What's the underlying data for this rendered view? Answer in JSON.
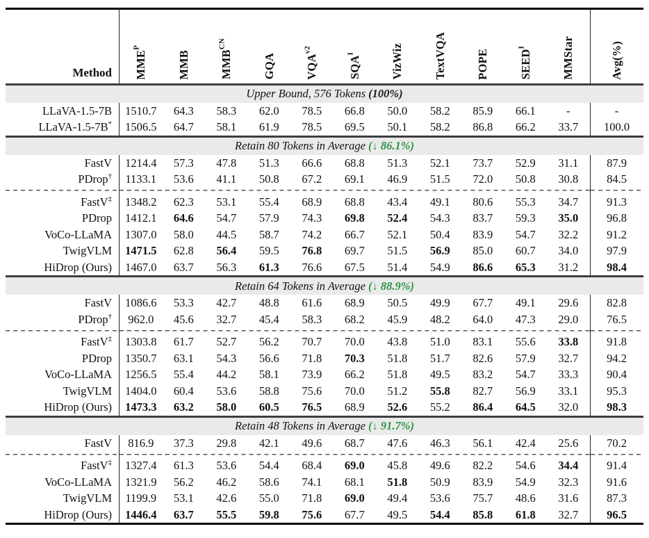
{
  "colors": {
    "green": "#2e9447",
    "black": "#1a1a1a",
    "band_bg": "#eaeaea"
  },
  "table": {
    "method_header": "Method",
    "columns": [
      {
        "label": "MME",
        "sup": "P"
      },
      {
        "label": "MMB",
        "sup": ""
      },
      {
        "label": "MMB",
        "sup": "CN"
      },
      {
        "label": "GQA",
        "sup": ""
      },
      {
        "label": "VQA",
        "sup": "v2"
      },
      {
        "label": "SQA",
        "sup": "I"
      },
      {
        "label": "VizWiz",
        "sup": ""
      },
      {
        "label": "TextVQA",
        "sup": ""
      },
      {
        "label": "POPE",
        "sup": ""
      },
      {
        "label": "SEED",
        "sup": "I"
      },
      {
        "label": "MMStar",
        "sup": ""
      },
      {
        "label": "Avg(%)",
        "sup": ""
      }
    ],
    "sections": [
      {
        "title": "Upper Bound, 576 Tokens",
        "badge": "(100%)",
        "badge_color": "black",
        "groups": [
          [
            {
              "method": "LLaVA-1.5-7B",
              "sup": "",
              "cells": [
                "1510.7",
                "64.3",
                "58.3",
                "62.0",
                "78.5",
                "66.8",
                "50.0",
                "58.2",
                "85.9",
                "66.1",
                "-",
                "-"
              ],
              "bold": []
            },
            {
              "method": "LLaVA-1.5-7B",
              "sup": "*",
              "cells": [
                "1506.5",
                "64.7",
                "58.1",
                "61.9",
                "78.5",
                "69.5",
                "50.1",
                "58.2",
                "86.8",
                "66.2",
                "33.7",
                "100.0"
              ],
              "bold": []
            }
          ]
        ]
      },
      {
        "title": "Retain 80 Tokens in Average",
        "badge": "(↓ 86.1%)",
        "badge_color": "green",
        "groups": [
          [
            {
              "method": "FastV",
              "sup": "",
              "cells": [
                "1214.4",
                "57.3",
                "47.8",
                "51.3",
                "66.6",
                "68.8",
                "51.3",
                "52.1",
                "73.7",
                "52.9",
                "31.1",
                "87.9"
              ],
              "bold": []
            },
            {
              "method": "PDrop",
              "sup": "†",
              "cells": [
                "1133.1",
                "53.6",
                "41.1",
                "50.8",
                "67.2",
                "69.1",
                "46.9",
                "51.5",
                "72.0",
                "50.8",
                "30.8",
                "84.5"
              ],
              "bold": []
            }
          ],
          [
            {
              "method": "FastV",
              "sup": "‡",
              "cells": [
                "1348.2",
                "62.3",
                "53.1",
                "55.4",
                "68.9",
                "68.8",
                "43.4",
                "49.1",
                "80.6",
                "55.3",
                "34.7",
                "91.3"
              ],
              "bold": []
            },
            {
              "method": "PDrop",
              "sup": "",
              "cells": [
                "1412.1",
                "64.6",
                "54.7",
                "57.9",
                "74.3",
                "69.8",
                "52.4",
                "54.3",
                "83.7",
                "59.3",
                "35.0",
                "96.8"
              ],
              "bold": [
                1,
                5,
                6,
                10
              ]
            },
            {
              "method": "VoCo-LLaMA",
              "sup": "",
              "cells": [
                "1307.0",
                "58.0",
                "44.5",
                "58.7",
                "74.2",
                "66.7",
                "52.1",
                "50.4",
                "83.9",
                "54.7",
                "32.2",
                "91.2"
              ],
              "bold": []
            },
            {
              "method": "TwigVLM",
              "sup": "",
              "cells": [
                "1471.5",
                "62.8",
                "56.4",
                "59.5",
                "76.8",
                "69.7",
                "51.5",
                "56.9",
                "85.0",
                "60.7",
                "34.0",
                "97.9"
              ],
              "bold": [
                0,
                2,
                4,
                7
              ]
            },
            {
              "method": "HiDrop (Ours)",
              "sup": "",
              "cells": [
                "1467.0",
                "63.7",
                "56.3",
                "61.3",
                "76.6",
                "67.5",
                "51.4",
                "54.9",
                "86.6",
                "65.3",
                "31.2",
                "98.4"
              ],
              "bold": [
                3,
                8,
                9,
                11
              ]
            }
          ]
        ]
      },
      {
        "title": "Retain 64 Tokens in Average",
        "badge": "(↓ 88.9%)",
        "badge_color": "green",
        "groups": [
          [
            {
              "method": "FastV",
              "sup": "",
              "cells": [
                "1086.6",
                "53.3",
                "42.7",
                "48.8",
                "61.6",
                "68.9",
                "50.5",
                "49.9",
                "67.7",
                "49.1",
                "29.6",
                "82.8"
              ],
              "bold": []
            },
            {
              "method": "PDrop",
              "sup": "†",
              "cells": [
                "962.0",
                "45.6",
                "32.7",
                "45.4",
                "58.3",
                "68.2",
                "45.9",
                "48.2",
                "64.0",
                "47.3",
                "29.0",
                "76.5"
              ],
              "bold": []
            }
          ],
          [
            {
              "method": "FastV",
              "sup": "‡",
              "cells": [
                "1303.8",
                "61.7",
                "52.7",
                "56.2",
                "70.7",
                "70.0",
                "43.8",
                "51.0",
                "83.1",
                "55.6",
                "33.8",
                "91.8"
              ],
              "bold": [
                10
              ]
            },
            {
              "method": "PDrop",
              "sup": "",
              "cells": [
                "1350.7",
                "63.1",
                "54.3",
                "56.6",
                "71.8",
                "70.3",
                "51.8",
                "51.7",
                "82.6",
                "57.9",
                "32.7",
                "94.2"
              ],
              "bold": [
                5
              ]
            },
            {
              "method": "VoCo-LLaMA",
              "sup": "",
              "cells": [
                "1256.5",
                "55.4",
                "44.2",
                "58.1",
                "73.9",
                "66.2",
                "51.8",
                "49.5",
                "83.2",
                "54.7",
                "33.3",
                "90.4"
              ],
              "bold": []
            },
            {
              "method": "TwigVLM",
              "sup": "",
              "cells": [
                "1404.0",
                "60.4",
                "53.6",
                "58.8",
                "75.6",
                "70.0",
                "51.2",
                "55.8",
                "82.7",
                "56.9",
                "33.1",
                "95.3"
              ],
              "bold": [
                7
              ]
            },
            {
              "method": "HiDrop (Ours)",
              "sup": "",
              "cells": [
                "1473.3",
                "63.2",
                "58.0",
                "60.5",
                "76.5",
                "68.9",
                "52.6",
                "55.2",
                "86.4",
                "64.5",
                "32.0",
                "98.3"
              ],
              "bold": [
                0,
                1,
                2,
                3,
                4,
                6,
                8,
                9,
                11
              ]
            }
          ]
        ]
      },
      {
        "title": "Retain 48 Tokens in Average",
        "badge": "(↓ 91.7%)",
        "badge_color": "green",
        "groups": [
          [
            {
              "method": "FastV",
              "sup": "",
              "cells": [
                "816.9",
                "37.3",
                "29.8",
                "42.1",
                "49.6",
                "68.7",
                "47.6",
                "46.3",
                "56.1",
                "42.4",
                "25.6",
                "70.2"
              ],
              "bold": []
            }
          ],
          [
            {
              "method": "FastV",
              "sup": "‡",
              "cells": [
                "1327.4",
                "61.3",
                "53.6",
                "54.4",
                "68.4",
                "69.0",
                "45.8",
                "49.6",
                "82.2",
                "54.6",
                "34.4",
                "91.4"
              ],
              "bold": [
                5,
                10
              ]
            },
            {
              "method": "VoCo-LLaMA",
              "sup": "",
              "cells": [
                "1321.9",
                "56.2",
                "46.2",
                "58.6",
                "74.1",
                "68.1",
                "51.8",
                "50.9",
                "83.9",
                "54.9",
                "32.3",
                "91.6"
              ],
              "bold": [
                6
              ]
            },
            {
              "method": "TwigVLM",
              "sup": "",
              "cells": [
                "1199.9",
                "53.1",
                "42.6",
                "55.0",
                "71.8",
                "69.0",
                "49.4",
                "53.6",
                "75.7",
                "48.6",
                "31.6",
                "87.3"
              ],
              "bold": [
                5
              ]
            },
            {
              "method": "HiDrop (Ours)",
              "sup": "",
              "cells": [
                "1446.4",
                "63.7",
                "55.5",
                "59.8",
                "75.6",
                "67.7",
                "49.5",
                "54.4",
                "85.8",
                "61.8",
                "32.7",
                "96.5"
              ],
              "bold": [
                0,
                1,
                2,
                3,
                4,
                7,
                8,
                9,
                11
              ]
            }
          ]
        ]
      }
    ]
  }
}
